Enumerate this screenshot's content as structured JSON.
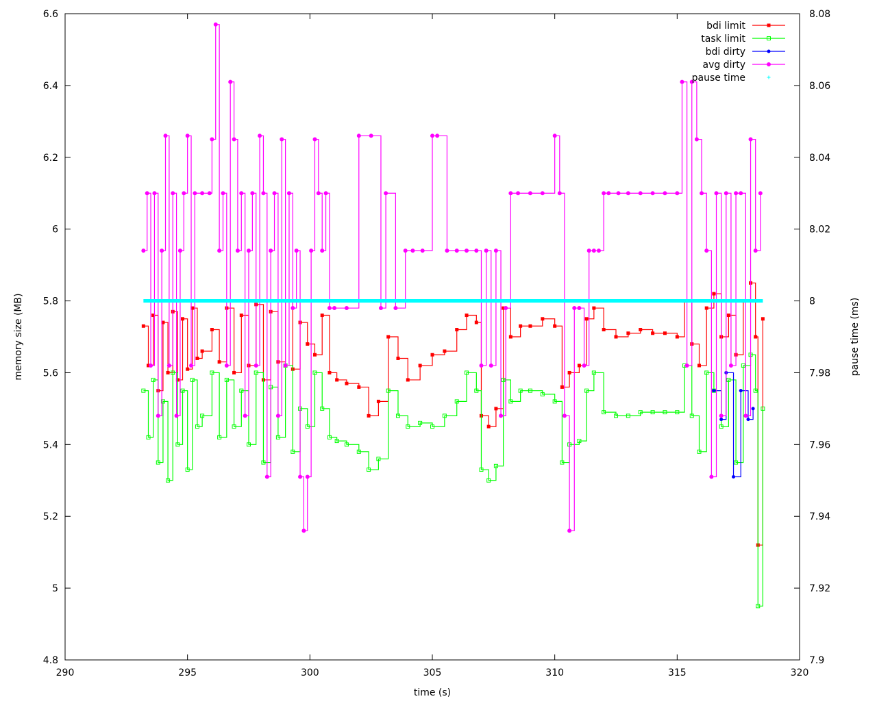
{
  "chart_data": {
    "type": "line",
    "xlabel": "time (s)",
    "ylabel": "memory size (MB)",
    "y2label": "pause time (ms)",
    "xlim": [
      290,
      320
    ],
    "ylim": [
      4.8,
      6.6
    ],
    "y2lim": [
      7.9,
      8.08
    ],
    "xticks": [
      "290",
      "295",
      "300",
      "305",
      "310",
      "315",
      "320"
    ],
    "yticks": [
      "4.8",
      "5",
      "5.2",
      "5.4",
      "5.6",
      "5.8",
      "6",
      "6.2",
      "6.4",
      "6.6"
    ],
    "y2ticks": [
      "7.9",
      "7.92",
      "7.94",
      "7.96",
      "7.98",
      "8",
      "8.02",
      "8.04",
      "8.06",
      "8.08"
    ],
    "grid": false,
    "legend_position": "top-right",
    "series": [
      {
        "name": "bdi limit",
        "color": "#ff0000",
        "marker": "square-filled",
        "axis": "y",
        "x": [
          293.2,
          293.4,
          293.6,
          293.8,
          294.0,
          294.2,
          294.4,
          294.6,
          294.8,
          295.0,
          295.2,
          295.4,
          295.6,
          296.0,
          296.3,
          296.6,
          296.9,
          297.2,
          297.5,
          297.8,
          298.1,
          298.4,
          298.7,
          299.0,
          299.3,
          299.6,
          299.9,
          300.2,
          300.5,
          300.8,
          301.1,
          301.5,
          302.0,
          302.4,
          302.8,
          303.2,
          303.6,
          304.0,
          304.5,
          305.0,
          305.5,
          306.0,
          306.4,
          306.8,
          307.0,
          307.3,
          307.6,
          307.9,
          308.2,
          308.6,
          309.0,
          309.5,
          310.0,
          310.3,
          310.6,
          311.0,
          311.3,
          311.6,
          312.0,
          312.5,
          313.0,
          313.5,
          314.0,
          314.5,
          315.0,
          315.3,
          315.6,
          315.9,
          316.2,
          316.5,
          316.8,
          317.1,
          317.4,
          317.7,
          318.0,
          318.2,
          318.3,
          318.5
        ],
        "y": [
          5.73,
          5.62,
          5.76,
          5.55,
          5.74,
          5.6,
          5.77,
          5.58,
          5.75,
          5.61,
          5.78,
          5.64,
          5.66,
          5.72,
          5.63,
          5.78,
          5.6,
          5.76,
          5.62,
          5.79,
          5.58,
          5.77,
          5.63,
          5.8,
          5.61,
          5.74,
          5.68,
          5.65,
          5.76,
          5.6,
          5.58,
          5.57,
          5.56,
          5.48,
          5.52,
          5.7,
          5.64,
          5.58,
          5.62,
          5.65,
          5.66,
          5.72,
          5.76,
          5.74,
          5.48,
          5.45,
          5.5,
          5.78,
          5.7,
          5.73,
          5.73,
          5.75,
          5.73,
          5.56,
          5.6,
          5.62,
          5.75,
          5.78,
          5.72,
          5.7,
          5.71,
          5.72,
          5.71,
          5.71,
          5.7,
          5.8,
          5.68,
          5.62,
          5.78,
          5.82,
          5.7,
          5.76,
          5.65,
          5.8,
          5.85,
          5.7,
          5.12,
          5.75
        ]
      },
      {
        "name": "task limit",
        "color": "#00ff00",
        "marker": "square-open",
        "axis": "y",
        "x": [
          293.2,
          293.4,
          293.6,
          293.8,
          294.0,
          294.2,
          294.4,
          294.6,
          294.8,
          295.0,
          295.2,
          295.4,
          295.6,
          296.0,
          296.3,
          296.6,
          296.9,
          297.2,
          297.5,
          297.8,
          298.1,
          298.4,
          298.7,
          299.0,
          299.3,
          299.6,
          299.9,
          300.2,
          300.5,
          300.8,
          301.1,
          301.5,
          302.0,
          302.4,
          302.8,
          303.2,
          303.6,
          304.0,
          304.5,
          305.0,
          305.5,
          306.0,
          306.4,
          306.8,
          307.0,
          307.3,
          307.6,
          307.9,
          308.2,
          308.6,
          309.0,
          309.5,
          310.0,
          310.3,
          310.6,
          311.0,
          311.3,
          311.6,
          312.0,
          312.5,
          313.0,
          313.5,
          314.0,
          314.5,
          315.0,
          315.3,
          315.6,
          315.9,
          316.2,
          316.5,
          316.8,
          317.1,
          317.4,
          317.7,
          318.0,
          318.2,
          318.3,
          318.5
        ],
        "y": [
          5.55,
          5.42,
          5.58,
          5.35,
          5.52,
          5.3,
          5.6,
          5.4,
          5.55,
          5.33,
          5.58,
          5.45,
          5.48,
          5.6,
          5.42,
          5.58,
          5.45,
          5.55,
          5.4,
          5.6,
          5.35,
          5.56,
          5.42,
          5.62,
          5.38,
          5.5,
          5.45,
          5.6,
          5.5,
          5.42,
          5.41,
          5.4,
          5.38,
          5.33,
          5.36,
          5.55,
          5.48,
          5.45,
          5.46,
          5.45,
          5.48,
          5.52,
          5.6,
          5.55,
          5.33,
          5.3,
          5.34,
          5.58,
          5.52,
          5.55,
          5.55,
          5.54,
          5.52,
          5.35,
          5.4,
          5.41,
          5.55,
          5.6,
          5.49,
          5.48,
          5.48,
          5.49,
          5.49,
          5.49,
          5.49,
          5.62,
          5.48,
          5.38,
          5.6,
          5.55,
          5.45,
          5.58,
          5.35,
          5.62,
          5.65,
          5.55,
          4.95,
          5.5
        ]
      },
      {
        "name": "bdi dirty",
        "color": "#0000ff",
        "marker": "dot",
        "axis": "y",
        "x": [
          316.5,
          316.8,
          317.0,
          317.3,
          317.6,
          317.9,
          318.1
        ],
        "y": [
          5.55,
          5.47,
          5.6,
          5.31,
          5.55,
          5.47,
          5.5
        ]
      },
      {
        "name": "avg dirty",
        "color": "#ff00ff",
        "marker": "circle-open",
        "axis": "y",
        "x": [
          293.2,
          293.35,
          293.5,
          293.65,
          293.8,
          293.95,
          294.1,
          294.25,
          294.4,
          294.55,
          294.7,
          294.85,
          295.0,
          295.15,
          295.3,
          295.6,
          295.9,
          296.0,
          296.15,
          296.3,
          296.45,
          296.6,
          296.75,
          296.9,
          297.05,
          297.2,
          297.35,
          297.5,
          297.65,
          297.8,
          297.95,
          298.1,
          298.25,
          298.4,
          298.55,
          298.7,
          298.85,
          299.0,
          299.15,
          299.3,
          299.45,
          299.6,
          299.75,
          299.9,
          300.05,
          300.2,
          300.35,
          300.5,
          300.65,
          300.8,
          301.0,
          301.5,
          302.0,
          302.5,
          302.9,
          303.1,
          303.5,
          303.9,
          304.2,
          304.6,
          305.0,
          305.2,
          305.6,
          306.0,
          306.4,
          306.8,
          307.0,
          307.2,
          307.4,
          307.6,
          307.8,
          308.0,
          308.2,
          308.5,
          309.0,
          309.5,
          310.0,
          310.2,
          310.4,
          310.6,
          310.8,
          311.0,
          311.2,
          311.4,
          311.6,
          311.8,
          312.0,
          312.2,
          312.6,
          313.0,
          313.5,
          314.0,
          314.5,
          315.0,
          315.2,
          315.4,
          315.6,
          315.8,
          316.0,
          316.2,
          316.4,
          316.6,
          316.8,
          317.0,
          317.2,
          317.4,
          317.6,
          317.8,
          318.0,
          318.2,
          318.4
        ],
        "y": [
          5.94,
          6.1,
          5.62,
          6.1,
          5.48,
          5.94,
          6.26,
          5.62,
          6.1,
          5.48,
          5.94,
          6.1,
          6.26,
          5.62,
          6.1,
          6.1,
          6.1,
          6.25,
          6.57,
          5.94,
          6.1,
          5.62,
          6.41,
          6.25,
          5.94,
          6.1,
          5.48,
          5.94,
          6.1,
          5.62,
          6.26,
          6.1,
          5.31,
          5.94,
          6.1,
          5.48,
          6.25,
          5.62,
          6.1,
          5.78,
          5.94,
          5.31,
          5.16,
          5.31,
          5.94,
          6.25,
          6.1,
          5.94,
          6.1,
          5.78,
          5.78,
          5.78,
          6.26,
          6.26,
          5.78,
          6.1,
          5.78,
          5.94,
          5.94,
          5.94,
          6.26,
          6.26,
          5.94,
          5.94,
          5.94,
          5.94,
          5.62,
          5.94,
          5.62,
          5.94,
          5.48,
          5.78,
          6.1,
          6.1,
          6.1,
          6.1,
          6.26,
          6.1,
          5.48,
          5.16,
          5.78,
          5.78,
          5.62,
          5.94,
          5.94,
          5.94,
          6.1,
          6.1,
          6.1,
          6.1,
          6.1,
          6.1,
          6.1,
          6.1,
          6.41,
          5.62,
          6.41,
          6.25,
          6.1,
          5.94,
          5.31,
          6.1,
          5.48,
          6.1,
          5.62,
          6.1,
          6.1,
          5.48,
          6.25,
          5.94,
          6.1
        ]
      },
      {
        "name": "pause time",
        "color": "#00ffff",
        "marker": "plus",
        "axis": "y2",
        "x": [
          293.2,
          318.5
        ],
        "y": [
          8.0,
          8.0
        ]
      }
    ]
  }
}
